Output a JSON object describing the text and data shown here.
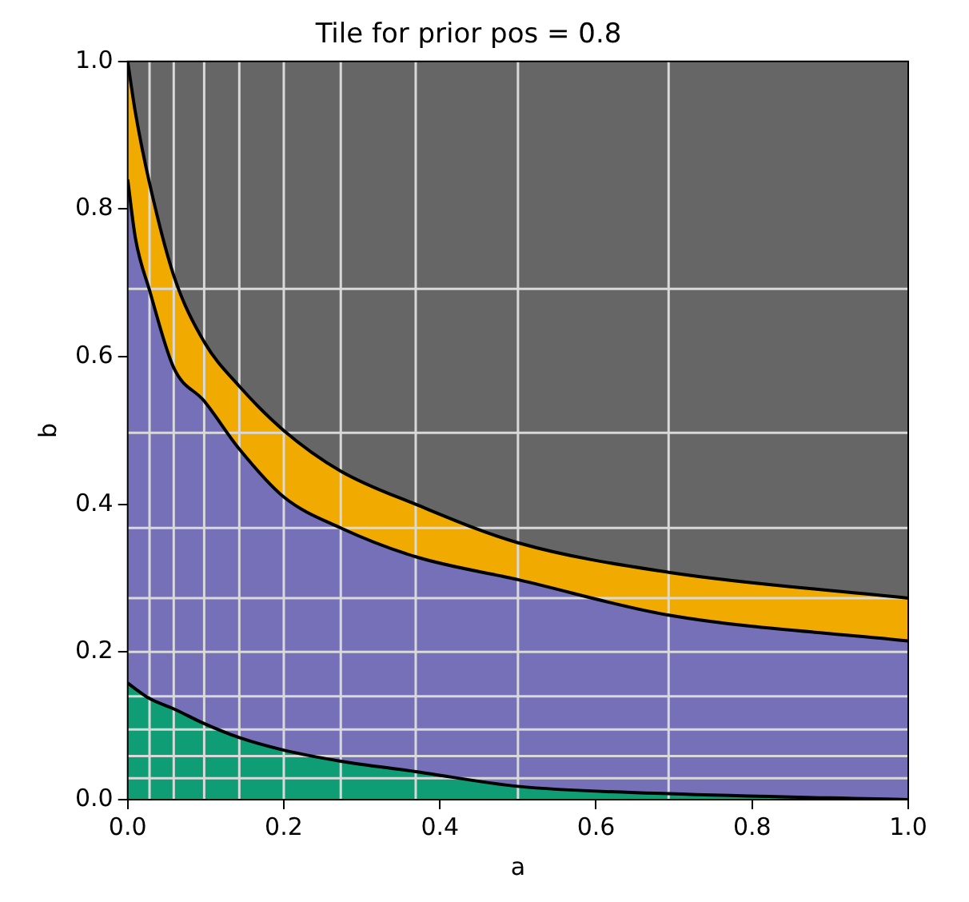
{
  "chart_data": {
    "type": "area",
    "title": "Tile for prior pos = 0.8",
    "xlabel": "a",
    "ylabel": "b",
    "xlim": [
      0,
      1
    ],
    "ylim": [
      0,
      1
    ],
    "xticks": [
      {
        "value": 0,
        "label": "0.0"
      },
      {
        "value": 0.2,
        "label": "0.2"
      },
      {
        "value": 0.4,
        "label": "0.4"
      },
      {
        "value": 0.6,
        "label": "0.6"
      },
      {
        "value": 0.8,
        "label": "0.8"
      },
      {
        "value": 1,
        "label": "1.0"
      }
    ],
    "yticks": [
      {
        "value": 0,
        "label": "0.0"
      },
      {
        "value": 0.2,
        "label": "0.2"
      },
      {
        "value": 0.4,
        "label": "0.4"
      },
      {
        "value": 0.6,
        "label": "0.6"
      },
      {
        "value": 0.8,
        "label": "0.8"
      },
      {
        "value": 1,
        "label": "1.0"
      }
    ],
    "series": [
      {
        "color": "#0f9d76",
        "values": [
          0.158,
          0.15,
          0.137,
          0.123,
          0.103,
          0.084,
          0.067,
          0.052,
          0.038,
          0.018,
          0.008,
          0
        ]
      },
      {
        "color": "#7570b8",
        "values": [
          0.84,
          0.76,
          0.69,
          0.585,
          0.54,
          0.475,
          0.41,
          0.368,
          0.329,
          0.298,
          0.25,
          0.215
        ]
      },
      {
        "color": "#f0aa00",
        "values": [
          1,
          0.93,
          0.835,
          0.71,
          0.62,
          0.56,
          0.5,
          0.445,
          0.4,
          0.348,
          0.308,
          0.273
        ]
      },
      {
        "color": "#666666",
        "values": [
          1,
          1,
          1,
          1,
          1,
          1,
          1,
          1,
          1,
          1,
          1,
          1
        ]
      }
    ],
    "x": [
      0,
      0.01,
      0.028,
      0.059,
      0.098,
      0.143,
      0.2,
      0.273,
      0.369,
      0.5,
      0.693,
      1
    ],
    "ref_lines": [
      {
        "axis": "x",
        "value": 0.028,
        "color": "#d9d9d9"
      },
      {
        "axis": "x",
        "value": 0.059,
        "color": "#d9d9d9"
      },
      {
        "axis": "x",
        "value": 0.098,
        "color": "#d9d9d9"
      },
      {
        "axis": "x",
        "value": 0.143,
        "color": "#d9d9d9"
      },
      {
        "axis": "x",
        "value": 0.2,
        "color": "#d9d9d9"
      },
      {
        "axis": "x",
        "value": 0.273,
        "color": "#d9d9d9"
      },
      {
        "axis": "x",
        "value": 0.369,
        "color": "#d9d9d9"
      },
      {
        "axis": "x",
        "value": 0.5,
        "color": "#d9d9d9"
      },
      {
        "axis": "x",
        "value": 0.693,
        "color": "#d9d9d9"
      },
      {
        "axis": "y",
        "value": 0.029,
        "color": "#d9d9d9"
      },
      {
        "axis": "y",
        "value": 0.059,
        "color": "#d9d9d9"
      },
      {
        "axis": "y",
        "value": 0.095,
        "color": "#d9d9d9"
      },
      {
        "axis": "y",
        "value": 0.14,
        "color": "#d9d9d9"
      },
      {
        "axis": "y",
        "value": 0.2,
        "color": "#d9d9d9"
      },
      {
        "axis": "y",
        "value": 0.273,
        "color": "#d9d9d9"
      },
      {
        "axis": "y",
        "value": 0.368,
        "color": "#d9d9d9"
      },
      {
        "axis": "y",
        "value": 0.497,
        "color": "#d9d9d9"
      },
      {
        "axis": "y",
        "value": 0.692,
        "color": "#d9d9d9"
      }
    ]
  }
}
